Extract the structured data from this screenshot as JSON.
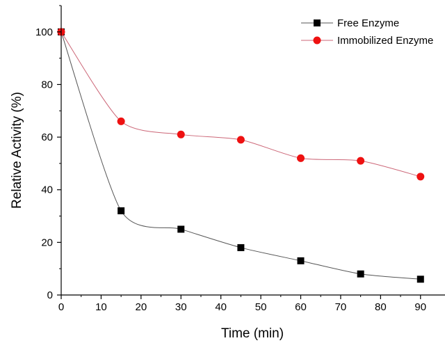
{
  "chart_data": {
    "type": "line",
    "title": "",
    "xlabel": "Time (min)",
    "ylabel": "Relative Activity (%)",
    "xlim": [
      0,
      93
    ],
    "ylim": [
      0,
      110
    ],
    "xticks": [
      0,
      10,
      20,
      30,
      40,
      50,
      60,
      70,
      80,
      90
    ],
    "yticks": [
      0,
      20,
      40,
      60,
      80,
      100
    ],
    "grid": false,
    "legend_position": "top-right",
    "series": [
      {
        "name": "Free Enzyme",
        "marker": "square",
        "color": "#000000",
        "line_color": "#555555",
        "x": [
          0,
          15,
          30,
          45,
          60,
          75,
          90
        ],
        "y": [
          100,
          32,
          25,
          18,
          13,
          8,
          6
        ]
      },
      {
        "name": "Immobilized Enzyme",
        "marker": "circle",
        "color": "#ee1111",
        "line_color": "#cc6677",
        "x": [
          0,
          15,
          30,
          45,
          60,
          75,
          90
        ],
        "y": [
          100,
          66,
          61,
          59,
          52,
          51,
          45
        ]
      }
    ]
  }
}
